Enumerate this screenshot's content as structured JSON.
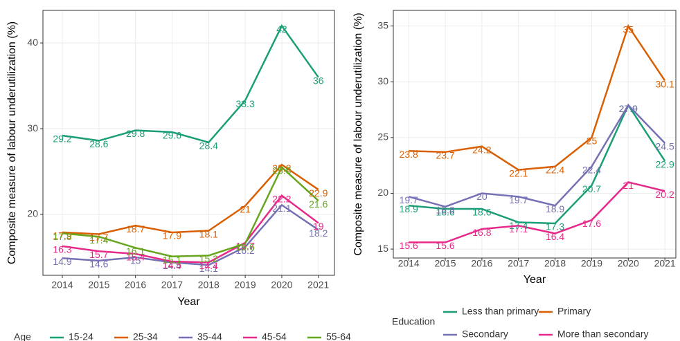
{
  "chart_data": [
    {
      "type": "line",
      "y_label": "Composite measure of labour underutilization (%)",
      "x_label": "Year",
      "legend_title": "Age",
      "x": [
        2014,
        2015,
        2016,
        2017,
        2018,
        2019,
        2020,
        2021
      ],
      "xlim": [
        2013.47,
        2021.44
      ],
      "xticks": [
        2014,
        2015,
        2016,
        2017,
        2018,
        2019,
        2020,
        2021
      ],
      "ylim": [
        12.9,
        43.8
      ],
      "yticks": [
        20,
        30,
        40
      ],
      "grid": true,
      "series": [
        {
          "name": "15-24",
          "color": "#1b9e77",
          "values": [
            29.2,
            28.6,
            29.8,
            29.6,
            28.4,
            33.3,
            42,
            36
          ]
        },
        {
          "name": "25-34",
          "color": "#d95f02",
          "values": [
            17.9,
            17.7,
            18.7,
            17.9,
            18.1,
            21,
            25.8,
            22.9
          ]
        },
        {
          "name": "35-44",
          "color": "#7570b3",
          "values": [
            14.9,
            14.6,
            15,
            14.4,
            14.1,
            16.2,
            21.1,
            18.2
          ]
        },
        {
          "name": "45-54",
          "color": "#e7298a",
          "values": [
            16.3,
            15.7,
            15.4,
            14.5,
            14.4,
            16.7,
            22.2,
            19
          ]
        },
        {
          "name": "55-64",
          "color": "#66a61e",
          "values": [
            17.8,
            17.4,
            16.1,
            15.1,
            15.2,
            16.6,
            25.5,
            21.6
          ]
        }
      ]
    },
    {
      "type": "line",
      "y_label": "Composite measure of labour underutilization (%)",
      "x_label": "Year",
      "legend_title": "Education",
      "x": [
        2014,
        2015,
        2016,
        2017,
        2018,
        2019,
        2020,
        2021
      ],
      "xlim": [
        2013.58,
        2021.3
      ],
      "xticks": [
        2014,
        2015,
        2016,
        2017,
        2018,
        2019,
        2020,
        2021
      ],
      "ylim": [
        14.2,
        36.4
      ],
      "yticks": [
        15,
        20,
        25,
        30,
        35
      ],
      "grid": true,
      "series": [
        {
          "name": "Less than primary",
          "color": "#1b9e77",
          "values": [
            18.9,
            18.6,
            18.6,
            17.4,
            17.3,
            20.7,
            27.9,
            22.9
          ]
        },
        {
          "name": "Primary",
          "color": "#d95f02",
          "values": [
            23.8,
            23.7,
            24.2,
            22.1,
            22.4,
            25,
            35,
            30.1
          ]
        },
        {
          "name": "Secondary",
          "color": "#7570b3",
          "values": [
            19.7,
            18.8,
            20,
            19.7,
            18.9,
            22.4,
            27.9,
            24.5
          ]
        },
        {
          "name": "More than secondary",
          "color": "#e7298a",
          "values": [
            15.6,
            15.6,
            16.8,
            17.1,
            16.4,
            17.6,
            21,
            20.2
          ]
        }
      ]
    }
  ]
}
